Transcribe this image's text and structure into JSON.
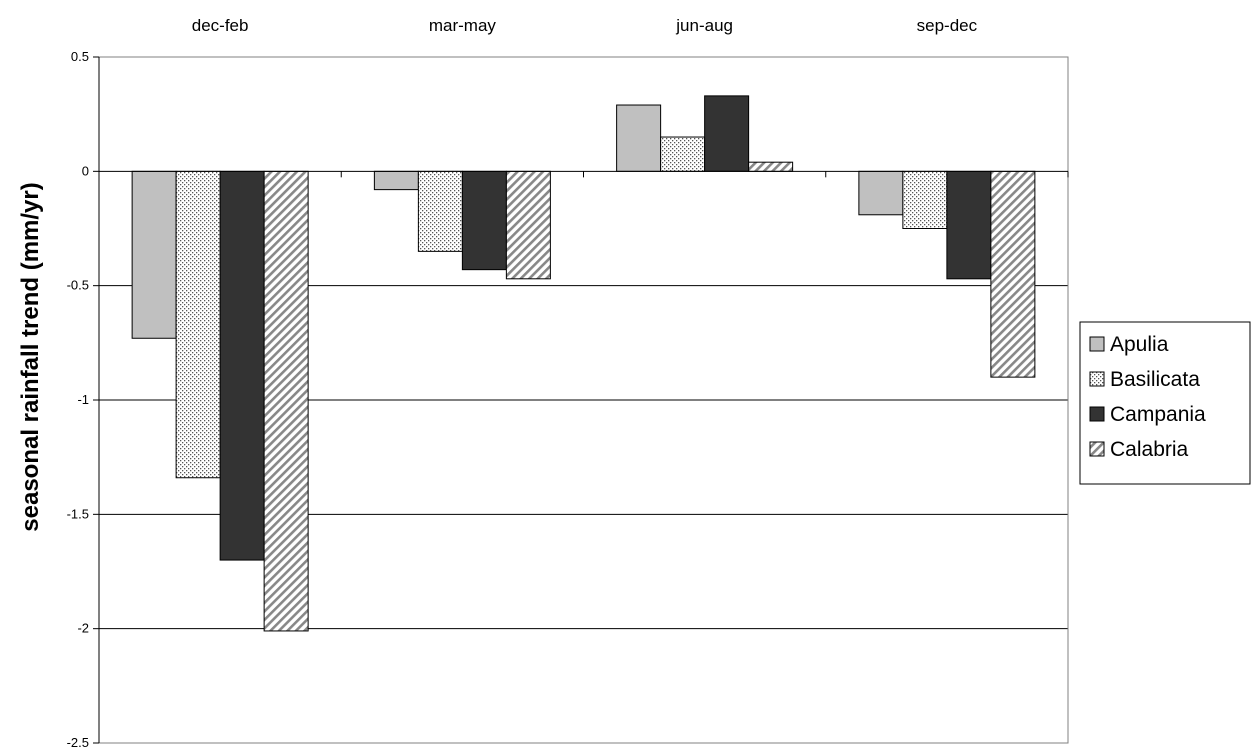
{
  "chart_data": {
    "type": "bar",
    "categories": [
      "dec-feb",
      "mar-may",
      "jun-aug",
      "sep-dec"
    ],
    "series": [
      {
        "name": "Apulia",
        "values": [
          -0.73,
          -0.08,
          0.29,
          -0.19
        ]
      },
      {
        "name": "Basilicata",
        "values": [
          -1.34,
          -0.35,
          0.15,
          -0.25
        ]
      },
      {
        "name": "Campania",
        "values": [
          -1.7,
          -0.43,
          0.33,
          -0.47
        ]
      },
      {
        "name": "Calabria",
        "values": [
          -2.01,
          -0.47,
          0.04,
          -0.9
        ]
      }
    ],
    "title": "",
    "xlabel": "",
    "ylabel": "seasonal rainfall trend (mm/yr)",
    "ylim": [
      -2.5,
      0.5
    ],
    "yticks": [
      "0.5",
      "0",
      "-0.5",
      "-1",
      "-1.5",
      "-2",
      "-2.5"
    ],
    "category_labels_position": "top",
    "grid": true,
    "legend_position": "right",
    "series_fills": [
      "#c0c0c0",
      "dots",
      "#333333",
      "diagonal-hatch"
    ]
  }
}
